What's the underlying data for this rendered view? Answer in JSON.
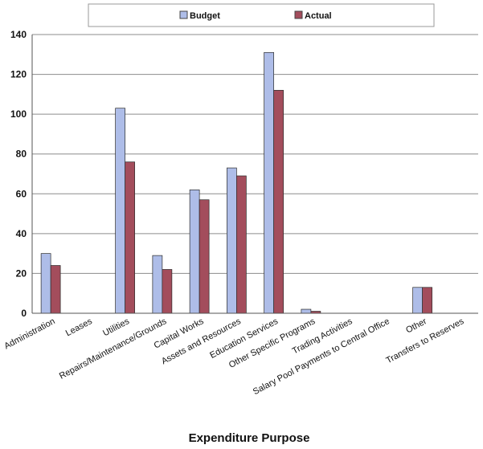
{
  "chart_data": {
    "type": "bar",
    "categories": [
      "Administration",
      "Leases",
      "Utilities",
      "Repairs/Maintenance/Grounds",
      "Capital Works",
      "Assets and Resources",
      "Education Services",
      "Other Specific Programs",
      "Trading Activities",
      "Salary Pool Payments to Central Office",
      "Other",
      "Transfers to Reserves"
    ],
    "series": [
      {
        "name": "Budget",
        "values": [
          30,
          0,
          103,
          29,
          62,
          73,
          131,
          2,
          0,
          0,
          13,
          0
        ]
      },
      {
        "name": "Actual",
        "values": [
          24,
          0,
          76,
          22,
          57,
          69,
          112,
          1,
          0,
          0,
          13,
          0
        ]
      }
    ],
    "title": "",
    "xlabel": "Expenditure Purpose",
    "ylabel": "",
    "ylim": [
      0,
      140
    ],
    "yticks": [
      0,
      20,
      40,
      60,
      80,
      100,
      120,
      140
    ],
    "grid": true,
    "legend_position": "top-center",
    "colors": {
      "Budget": "#aebde8",
      "Actual": "#a34d5c"
    }
  }
}
